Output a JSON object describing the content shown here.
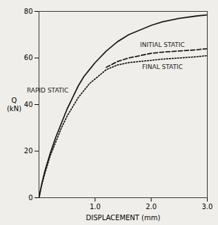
{
  "chart_data": {
    "type": "line",
    "xlabel": "DISPLACEMENT (mm)",
    "ylabel": "Q\n(kN)",
    "xlim": [
      0,
      3.0
    ],
    "ylim": [
      0,
      80
    ],
    "xticks": [
      {
        "value": 1.0,
        "label": "1.0"
      },
      {
        "value": 2.0,
        "label": "2.0"
      },
      {
        "value": 3.0,
        "label": "3.0"
      }
    ],
    "yticks": [
      0,
      20,
      40,
      60,
      80
    ],
    "series": [
      {
        "name": "RAPID STATIC",
        "color": "#1a1a1a",
        "line_style": "solid",
        "x": [
          0,
          0.05,
          0.1,
          0.2,
          0.3,
          0.4,
          0.5,
          0.6,
          0.7,
          0.8,
          0.9,
          1.0,
          1.2,
          1.4,
          1.6,
          1.8,
          2.0,
          2.2,
          2.5,
          2.8,
          3.0
        ],
        "values": [
          0,
          6,
          11,
          19,
          26,
          32,
          38,
          43,
          48,
          52,
          55,
          58,
          63,
          67,
          70,
          72,
          74,
          75.5,
          77,
          78,
          78.5
        ]
      },
      {
        "name": "INITIAL STATIC",
        "color": "#1a1a1a",
        "line_style": "dashed",
        "x": [
          1.2,
          1.4,
          1.6,
          1.8,
          2.0,
          2.2,
          2.5,
          2.8,
          3.0
        ],
        "values": [
          56,
          58.5,
          60,
          61,
          62,
          62.5,
          63,
          63.5,
          64
        ]
      },
      {
        "name": "FINAL STATIC",
        "color": "#1a1a1a",
        "line_style": "dotted",
        "x": [
          0,
          0.05,
          0.1,
          0.2,
          0.3,
          0.4,
          0.5,
          0.6,
          0.7,
          0.8,
          0.9,
          1.0,
          1.2,
          1.4,
          1.6,
          1.8,
          2.0,
          2.2,
          2.5,
          2.8,
          3.0
        ],
        "values": [
          0,
          5.5,
          10,
          18,
          24,
          30,
          35,
          39,
          43,
          46,
          49,
          51,
          55,
          57,
          58,
          58.5,
          59,
          59.5,
          60,
          60.5,
          61
        ]
      }
    ]
  }
}
